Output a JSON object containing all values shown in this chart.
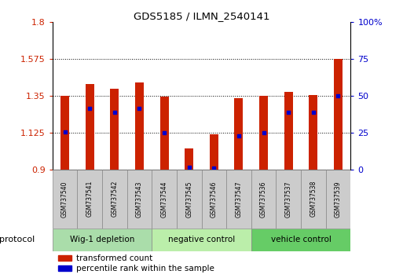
{
  "title": "GDS5185 / ILMN_2540141",
  "samples": [
    "GSM737540",
    "GSM737541",
    "GSM737542",
    "GSM737543",
    "GSM737544",
    "GSM737545",
    "GSM737546",
    "GSM737547",
    "GSM737536",
    "GSM737537",
    "GSM737538",
    "GSM737539"
  ],
  "bar_values": [
    1.35,
    1.42,
    1.395,
    1.43,
    1.345,
    1.03,
    1.115,
    1.335,
    1.35,
    1.375,
    1.355,
    1.575
  ],
  "blue_dot_values": [
    1.128,
    1.275,
    1.25,
    1.275,
    1.125,
    0.912,
    0.91,
    1.107,
    1.125,
    1.248,
    1.248,
    1.35
  ],
  "bar_bottom": 0.9,
  "ylim": [
    0.9,
    1.8
  ],
  "yticks": [
    0.9,
    1.125,
    1.35,
    1.575,
    1.8
  ],
  "y2lim": [
    0,
    100
  ],
  "y2ticks": [
    0,
    25,
    50,
    75,
    100
  ],
  "bar_color": "#cc2200",
  "dot_color": "#0000cc",
  "groups": [
    {
      "label": "Wig-1 depletion",
      "start": 0,
      "end": 4,
      "color": "#aaddaa"
    },
    {
      "label": "negative control",
      "start": 4,
      "end": 8,
      "color": "#bbeeaa"
    },
    {
      "label": "vehicle control",
      "start": 8,
      "end": 12,
      "color": "#66cc66"
    }
  ],
  "protocol_label": "protocol",
  "legend_red": "transformed count",
  "legend_blue": "percentile rank within the sample",
  "tick_label_color_left": "#cc2200",
  "tick_label_color_right": "#0000cc",
  "bar_width": 0.35
}
